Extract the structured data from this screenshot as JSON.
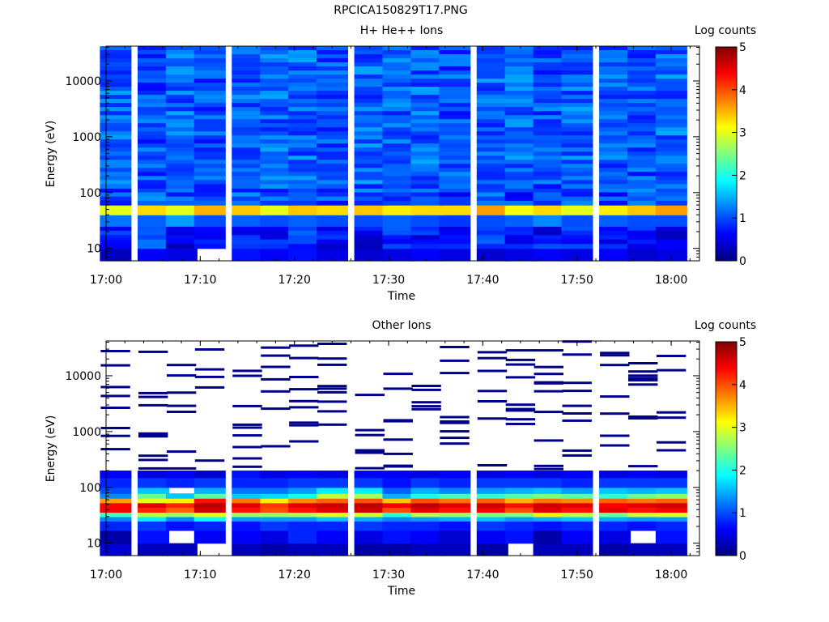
{
  "page_title": "RPCICA150829T17.PNG",
  "colormap": [
    "#00007f",
    "#0000ff",
    "#007fff",
    "#00ffff",
    "#7fff7f",
    "#ffff00",
    "#ff7f00",
    "#ff0000",
    "#7f0000"
  ],
  "chart_data": [
    {
      "type": "heatmap",
      "title": "H+ He++ Ions",
      "xlabel": "Time",
      "ylabel": "Energy (eV)",
      "yscale": "log",
      "xlim": [
        "17:00",
        "18:03"
      ],
      "ylim": [
        6,
        42000
      ],
      "x_ticks": [
        "17:00",
        "17:10",
        "17:20",
        "17:30",
        "17:40",
        "17:50",
        "18:00"
      ],
      "y_ticks": [
        "10",
        "100",
        "1000",
        "10000"
      ],
      "colorbar": {
        "label": "Log counts",
        "min": 0,
        "max": 5,
        "ticks": [
          "0",
          "1",
          "2",
          "3",
          "4",
          "5"
        ]
      },
      "time_bins": [
        "17:01",
        "17:05",
        "17:08",
        "17:11",
        "17:15",
        "17:18",
        "17:21",
        "17:24",
        "17:28",
        "17:31",
        "17:34",
        "17:37",
        "17:41",
        "17:44",
        "17:47",
        "17:50",
        "17:54",
        "17:57",
        "18:00"
      ],
      "energy_bands": [
        {
          "band": "6-10 eV",
          "log_counts": [
            0.3,
            0.6,
            0.5,
            null,
            0.7,
            0.6,
            0.7,
            0.5,
            0.4,
            0.5,
            0.6,
            0.5,
            0.4,
            0.5,
            0.6,
            0.5,
            0.6,
            0.4,
            0.5
          ]
        },
        {
          "band": "10-25 eV",
          "log_counts": [
            0.8,
            0.9,
            0.6,
            0.7,
            0.8,
            0.6,
            0.8,
            0.7,
            0.6,
            0.8,
            0.7,
            0.5,
            0.9,
            0.6,
            0.7,
            0.8,
            0.6,
            0.7,
            0.6
          ]
        },
        {
          "band": "25-40 eV",
          "log_counts": [
            1.2,
            1.1,
            1.4,
            1.0,
            1.1,
            1.0,
            1.1,
            1.0,
            1.0,
            1.1,
            1.0,
            0.9,
            1.0,
            1.1,
            1.3,
            1.0,
            1.1,
            1.0,
            1.0
          ]
        },
        {
          "band": "40-60 eV",
          "log_counts": [
            3.0,
            3.3,
            3.0,
            3.5,
            3.4,
            3.0,
            3.4,
            3.3,
            3.4,
            3.2,
            3.3,
            3.3,
            3.6,
            3.1,
            3.3,
            3.0,
            3.2,
            3.4,
            3.6
          ]
        },
        {
          "band": "60-120 eV",
          "log_counts": [
            0.9,
            1.1,
            1.0,
            0.8,
            1.0,
            1.0,
            0.9,
            1.0,
            1.1,
            0.9,
            1.0,
            0.9,
            1.0,
            0.9,
            1.0,
            1.0,
            0.9,
            1.0,
            1.0
          ]
        },
        {
          "band": "120-42000 eV",
          "log_counts": [
            1.1,
            1.0,
            1.1,
            1.0,
            1.1,
            1.1,
            1.1,
            1.0,
            1.1,
            1.1,
            1.1,
            1.0,
            1.1,
            1.1,
            1.0,
            1.1,
            1.1,
            1.0,
            1.1
          ]
        }
      ]
    },
    {
      "type": "heatmap",
      "title": "Other Ions",
      "xlabel": "Time",
      "ylabel": "Energy (eV)",
      "yscale": "log",
      "xlim": [
        "17:00",
        "18:03"
      ],
      "ylim": [
        6,
        42000
      ],
      "x_ticks": [
        "17:00",
        "17:10",
        "17:20",
        "17:30",
        "17:40",
        "17:50",
        "18:00"
      ],
      "y_ticks": [
        "10",
        "100",
        "1000",
        "10000"
      ],
      "colorbar": {
        "label": "Log counts",
        "min": 0,
        "max": 5,
        "ticks": [
          "0",
          "1",
          "2",
          "3",
          "4",
          "5"
        ]
      },
      "time_bins": [
        "17:01",
        "17:05",
        "17:08",
        "17:11",
        "17:15",
        "17:18",
        "17:21",
        "17:24",
        "17:28",
        "17:31",
        "17:34",
        "17:37",
        "17:41",
        "17:44",
        "17:47",
        "17:50",
        "17:54",
        "17:57",
        "18:00"
      ],
      "energy_bands": [
        {
          "band": "6-10 eV",
          "log_counts": [
            0.4,
            0.3,
            0.3,
            null,
            0.3,
            0.2,
            0.3,
            0.3,
            0.2,
            0.2,
            0.3,
            0.3,
            0.2,
            null,
            0.3,
            0.3,
            0.2,
            0.3,
            0.3
          ]
        },
        {
          "band": "10-17 eV",
          "log_counts": [
            0.2,
            0.7,
            null,
            0.6,
            0.6,
            0.5,
            0.8,
            0.6,
            0.5,
            0.7,
            0.6,
            0.4,
            0.6,
            0.7,
            0.2,
            0.6,
            0.5,
            null,
            0.7
          ]
        },
        {
          "band": "17-25 eV",
          "log_counts": [
            0.8,
            0.9,
            0.7,
            0.8,
            0.7,
            0.9,
            0.8,
            0.8,
            0.9,
            0.8,
            0.8,
            0.7,
            0.9,
            0.8,
            0.7,
            0.8,
            0.8,
            0.7,
            0.8
          ]
        },
        {
          "band": "25-30 eV",
          "log_counts": [
            1.3,
            1.8,
            1.3,
            1.9,
            1.4,
            1.4,
            1.4,
            1.6,
            1.5,
            1.3,
            1.4,
            1.5,
            1.6,
            1.4,
            1.5,
            1.6,
            1.5,
            1.4,
            1.4
          ]
        },
        {
          "band": "30-36 eV",
          "log_counts": [
            2.2,
            2.8,
            2.6,
            3.0,
            2.6,
            2.6,
            2.7,
            3.0,
            2.9,
            2.1,
            2.8,
            2.6,
            2.5,
            2.5,
            3.2,
            2.8,
            2.4,
            2.9,
            3.0
          ]
        },
        {
          "band": "36-44 eV",
          "log_counts": [
            4.4,
            4.2,
            3.9,
            4.6,
            4.3,
            4.0,
            4.3,
            4.5,
            4.6,
            4.0,
            4.5,
            4.3,
            4.4,
            4.0,
            4.5,
            4.3,
            4.5,
            4.3,
            4.4
          ]
        },
        {
          "band": "44-53 eV",
          "log_counts": [
            4.4,
            4.5,
            4.2,
            4.7,
            4.5,
            4.1,
            4.5,
            4.6,
            4.7,
            4.4,
            4.7,
            4.5,
            4.6,
            4.3,
            4.6,
            4.5,
            4.4,
            4.5,
            4.6
          ]
        },
        {
          "band": "53-64 eV",
          "log_counts": [
            3.6,
            3.0,
            3.2,
            4.3,
            3.8,
            3.2,
            3.7,
            3.9,
            4.0,
            3.4,
            4.0,
            3.8,
            3.9,
            3.5,
            3.8,
            3.7,
            3.9,
            3.8,
            3.9
          ]
        },
        {
          "band": "64-78 eV",
          "log_counts": [
            1.3,
            2.4,
            1.6,
            2.3,
            1.6,
            1.7,
            2.0,
            2.8,
            2.7,
            1.5,
            2.0,
            2.2,
            2.1,
            2.3,
            2.5,
            2.3,
            2.1,
            2.4,
            2.6
          ]
        },
        {
          "band": "78-100 eV",
          "log_counts": [
            1.0,
            1.6,
            null,
            1.5,
            1.2,
            1.2,
            1.4,
            1.8,
            1.8,
            1.1,
            1.5,
            1.3,
            1.4,
            1.5,
            1.6,
            1.4,
            1.6,
            1.5,
            1.6
          ]
        },
        {
          "band": "100-150 eV",
          "log_counts": [
            0.8,
            0.9,
            0.8,
            0.9,
            0.8,
            0.8,
            0.9,
            0.9,
            0.9,
            0.7,
            0.9,
            0.8,
            0.9,
            0.9,
            0.9,
            0.8,
            0.9,
            0.9,
            0.9
          ]
        },
        {
          "band": "150-200 eV",
          "log_counts": [
            0.6,
            0.5,
            0.6,
            0.4,
            0.7,
            0.5,
            0.6,
            0.5,
            0.6,
            0.6,
            0.5,
            0.6,
            0.5,
            0.6,
            0.5,
            0.6,
            0.5,
            0.6,
            0.5
          ]
        },
        {
          "band": "200-42000 eV",
          "log_counts": [
            0.1,
            0.1,
            0.1,
            0.1,
            0.1,
            0.1,
            0.1,
            0.1,
            0.1,
            0.1,
            0.1,
            0.1,
            0.1,
            0.1,
            0.1,
            0.1,
            0.1,
            0.1,
            0.1
          ],
          "note_sparse": "isolated counts only"
        }
      ]
    }
  ]
}
